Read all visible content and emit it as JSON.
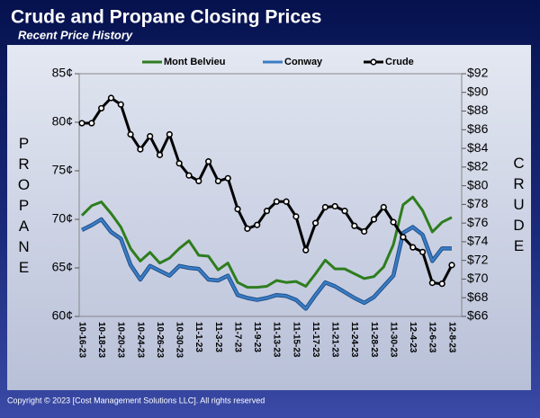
{
  "chart_data": {
    "type": "line",
    "title": "Crude and Propane Closing Prices",
    "subtitle": "Recent Price History",
    "y_label": "PROPANE",
    "y2_label": "CRUDE",
    "copyright": "Copyright © 2023 [Cost Management Solutions LLC].  All rights reserved",
    "categories": [
      "10-16-23",
      null,
      "10-18-23",
      null,
      "10-20-23",
      null,
      "10-24-23",
      null,
      "10-26-23",
      null,
      "10-30-23",
      null,
      "11-1-23",
      null,
      "11-3-23",
      null,
      "11-7-23",
      null,
      "11-9-23",
      null,
      "11-13-23",
      null,
      "11-15-23",
      null,
      "11-17-23",
      null,
      "11-21-23",
      null,
      "11-24-23",
      null,
      "11-28-23",
      null,
      "11-30-23",
      null,
      "12-4-23",
      null,
      "12-6-23",
      null,
      "12-8-23"
    ],
    "series": [
      {
        "name": "Mont Belvieu",
        "color": "#2e7d1e",
        "values": [
          70.4,
          71.4,
          71.8,
          70.6,
          69.2,
          67.0,
          65.7,
          66.6,
          65.5,
          66.0,
          67.0,
          67.8,
          66.3,
          66.2,
          64.8,
          65.5,
          63.5,
          63.0,
          63.0,
          63.1,
          63.7,
          63.5,
          63.6,
          63.1,
          64.4,
          65.8,
          64.9,
          64.9,
          64.4,
          63.9,
          64.1,
          65.1,
          67.4,
          71.5,
          72.3,
          70.9,
          68.7,
          69.7,
          70.2
        ]
      },
      {
        "name": "Conway",
        "color": "#3a7cc4",
        "values": [
          68.9,
          69.4,
          70.0,
          68.7,
          68.0,
          65.3,
          63.8,
          65.2,
          64.7,
          64.2,
          65.2,
          65.0,
          64.9,
          63.8,
          63.7,
          64.2,
          62.2,
          61.9,
          61.7,
          61.9,
          62.2,
          62.1,
          61.7,
          60.8,
          62.2,
          63.5,
          63.1,
          62.5,
          61.9,
          61.4,
          62.0,
          63.1,
          64.2,
          68.6,
          69.2,
          68.4,
          65.7,
          67.0,
          67.0
        ]
      },
      {
        "name": "Crude",
        "color": "#000000",
        "axis": "y2",
        "markers": true,
        "values": [
          86.7,
          86.7,
          88.3,
          89.4,
          88.7,
          85.5,
          83.9,
          85.3,
          83.3,
          85.5,
          82.4,
          81.1,
          80.5,
          82.6,
          80.5,
          80.8,
          77.5,
          75.4,
          75.8,
          77.3,
          78.3,
          78.3,
          76.7,
          73.1,
          76.0,
          77.7,
          77.8,
          77.3,
          75.7,
          75.1,
          76.4,
          77.7,
          76.1,
          74.5,
          73.4,
          72.9,
          69.6,
          69.5,
          71.5
        ]
      }
    ],
    "ylim": [
      60,
      85
    ],
    "yticks": [
      {
        "value": 60,
        "label": "60¢"
      },
      {
        "value": 65,
        "label": "65¢"
      },
      {
        "value": 70,
        "label": "70¢"
      },
      {
        "value": 75,
        "label": "75¢"
      },
      {
        "value": 80,
        "label": "80¢"
      },
      {
        "value": 85,
        "label": "85¢"
      }
    ],
    "y2lim": [
      66,
      92
    ],
    "y2ticks": [
      {
        "value": 66,
        "label": "$66"
      },
      {
        "value": 68,
        "label": "$68"
      },
      {
        "value": 70,
        "label": "$70"
      },
      {
        "value": 72,
        "label": "$72"
      },
      {
        "value": 74,
        "label": "$74"
      },
      {
        "value": 76,
        "label": "$76"
      },
      {
        "value": 78,
        "label": "$78"
      },
      {
        "value": 80,
        "label": "$80"
      },
      {
        "value": 82,
        "label": "$82"
      },
      {
        "value": 84,
        "label": "$84"
      },
      {
        "value": 86,
        "label": "$86"
      },
      {
        "value": 88,
        "label": "$88"
      },
      {
        "value": 90,
        "label": "$90"
      },
      {
        "value": 92,
        "label": "$92"
      }
    ],
    "legend": "top"
  }
}
